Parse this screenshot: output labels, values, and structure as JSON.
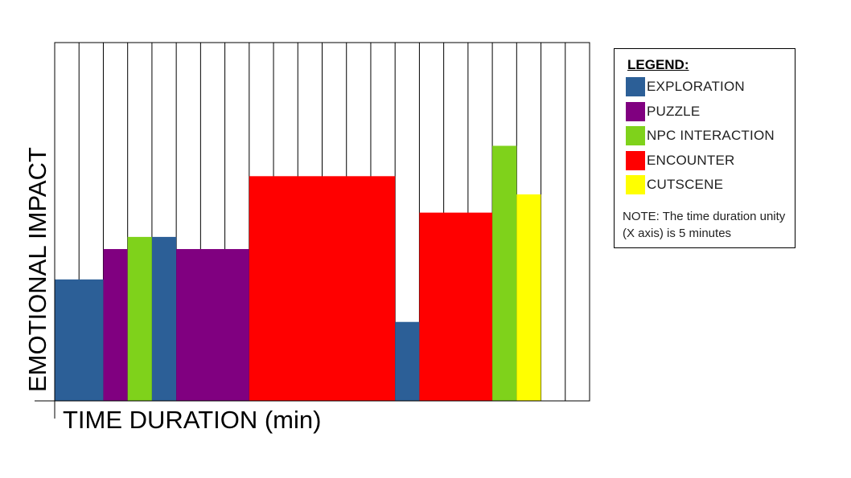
{
  "chart_data": {
    "type": "bar",
    "xlabel": "TIME DURATION (min)",
    "ylabel": "EMOTIONAL IMPACT",
    "x_unit": 5,
    "x_total_units": 22,
    "grid": true,
    "legend_position": "right",
    "segments": [
      {
        "category": "EXPLORATION",
        "start": 0,
        "width": 2,
        "value": 40
      },
      {
        "category": "PUZZLE",
        "start": 2,
        "width": 1,
        "value": 50
      },
      {
        "category": "NPC INTERACTION",
        "start": 3,
        "width": 1,
        "value": 54
      },
      {
        "category": "EXPLORATION",
        "start": 4,
        "width": 1,
        "value": 54
      },
      {
        "category": "PUZZLE",
        "start": 5,
        "width": 3,
        "value": 50
      },
      {
        "category": "ENCOUNTER",
        "start": 8,
        "width": 6,
        "value": 74
      },
      {
        "category": "EXPLORATION",
        "start": 14,
        "width": 1,
        "value": 26
      },
      {
        "category": "ENCOUNTER",
        "start": 15,
        "width": 3,
        "value": 62
      },
      {
        "category": "NPC INTERACTION",
        "start": 18,
        "width": 1,
        "value": 84
      },
      {
        "category": "CUTSCENE",
        "start": 19,
        "width": 1,
        "value": 68
      }
    ],
    "ylim": [
      0,
      118
    ]
  },
  "legend": {
    "title": "LEGEND:",
    "items": [
      {
        "label": "EXPLORATION",
        "color": "#2c5f97"
      },
      {
        "label": "PUZZLE",
        "color": "#800080"
      },
      {
        "label": "NPC INTERACTION",
        "color": "#7fd21b"
      },
      {
        "label": "ENCOUNTER",
        "color": "#ff0000"
      },
      {
        "label": "CUTSCENE",
        "color": "#ffff00"
      }
    ],
    "note": "NOTE: The time duration unity (X axis) is 5 minutes"
  }
}
